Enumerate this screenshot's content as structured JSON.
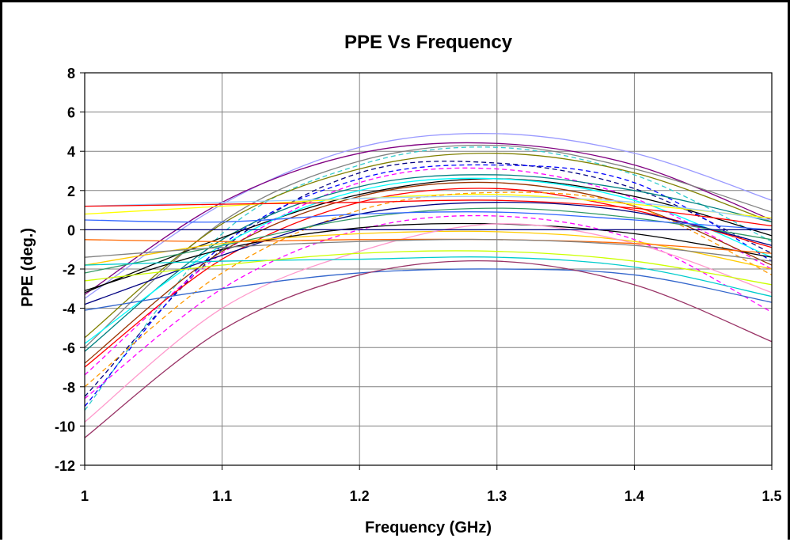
{
  "chart_data": {
    "type": "line",
    "title": "PPE Vs Frequency",
    "xlabel": "Frequency (GHz)",
    "ylabel": "PPE (deg.)",
    "xlim": [
      1,
      1.5
    ],
    "ylim": [
      -12,
      8
    ],
    "x_ticks": [
      "1",
      "1.1",
      "1.2",
      "1.3",
      "1.4",
      "1.5"
    ],
    "y_ticks": [
      "8",
      "6",
      "4",
      "2",
      "0",
      "-2",
      "-4",
      "-6",
      "-8",
      "-10",
      "-12"
    ],
    "grid": true,
    "legend": "none",
    "x": [
      1.0,
      1.1,
      1.2,
      1.3,
      1.4,
      1.5
    ],
    "series": [
      {
        "color": "#9999ff",
        "dash": false,
        "values": [
          -3.5,
          1.3,
          4.2,
          4.9,
          3.9,
          1.5
        ]
      },
      {
        "color": "#800080",
        "dash": false,
        "values": [
          -3.3,
          1.4,
          3.9,
          4.4,
          3.3,
          0.5
        ]
      },
      {
        "color": "#808080",
        "dash": false,
        "values": [
          -6.0,
          0.4,
          3.5,
          4.3,
          3.1,
          0.9
        ]
      },
      {
        "color": "#33cccc",
        "dash": true,
        "values": [
          -9.2,
          -0.2,
          3.3,
          4.2,
          2.8,
          -0.6
        ]
      },
      {
        "color": "#808000",
        "dash": false,
        "values": [
          -5.5,
          0.3,
          3.1,
          3.9,
          2.9,
          0.4
        ]
      },
      {
        "color": "#000080",
        "dash": true,
        "values": [
          -8.5,
          -1.0,
          2.9,
          3.4,
          2.1,
          -1.2
        ]
      },
      {
        "color": "#0000ff",
        "dash": true,
        "values": [
          -9.0,
          -0.8,
          2.6,
          3.3,
          2.4,
          -1.6
        ]
      },
      {
        "color": "#ff00ff",
        "dash": true,
        "values": [
          -7.4,
          -1.2,
          2.4,
          3.1,
          1.6,
          -2.0
        ]
      },
      {
        "color": "#008080",
        "dash": false,
        "values": [
          -6.2,
          -0.5,
          2.2,
          2.8,
          2.0,
          0.4
        ]
      },
      {
        "color": "#000000",
        "dash": false,
        "values": [
          -3.2,
          -0.4,
          1.8,
          2.6,
          1.7,
          -0.3
        ]
      },
      {
        "color": "#00ffff",
        "dash": false,
        "values": [
          -5.8,
          -0.8,
          2.0,
          2.6,
          1.5,
          -1.4
        ]
      },
      {
        "color": "#993300",
        "dash": false,
        "values": [
          -6.8,
          -1.1,
          1.7,
          2.4,
          1.2,
          -1.8
        ]
      },
      {
        "color": "#ff0000",
        "dash": false,
        "values": [
          -7.0,
          -1.5,
          1.4,
          2.1,
          1.0,
          -0.9
        ]
      },
      {
        "color": "#ffff00",
        "dash": false,
        "values": [
          0.8,
          1.2,
          1.6,
          1.8,
          1.3,
          0.6
        ]
      },
      {
        "color": "#ff9900",
        "dash": true,
        "values": [
          -8.0,
          -2.2,
          1.0,
          1.9,
          1.2,
          -2.3
        ]
      },
      {
        "color": "#99ccff",
        "dash": false,
        "values": [
          1.2,
          1.4,
          1.6,
          1.7,
          1.4,
          0.5
        ]
      },
      {
        "color": "#ff0000",
        "dash": false,
        "values": [
          1.2,
          1.3,
          1.4,
          1.5,
          1.1,
          0.2
        ]
      },
      {
        "color": "#000080",
        "dash": false,
        "values": [
          -3.8,
          -1.3,
          0.8,
          1.4,
          0.9,
          -0.8
        ]
      },
      {
        "color": "#339966",
        "dash": false,
        "values": [
          -2.2,
          -0.8,
          0.6,
          1.1,
          0.6,
          -0.5
        ]
      },
      {
        "color": "#3366ff",
        "dash": false,
        "values": [
          0.5,
          0.4,
          0.8,
          0.9,
          0.5,
          0.0
        ]
      },
      {
        "color": "#ff00ff",
        "dash": true,
        "values": [
          -8.6,
          -3.0,
          0.0,
          0.7,
          -0.5,
          -4.2
        ]
      },
      {
        "color": "#000000",
        "dash": false,
        "values": [
          -3.1,
          -1.0,
          0.1,
          0.3,
          -0.2,
          -1.4
        ]
      },
      {
        "color": "#ffcc00",
        "dash": false,
        "values": [
          -1.8,
          -0.7,
          -0.2,
          -0.1,
          -0.6,
          -2.0
        ]
      },
      {
        "color": "#ff99cc",
        "dash": false,
        "values": [
          -9.8,
          -4.0,
          -1.1,
          0.3,
          -0.7,
          -3.2
        ]
      },
      {
        "color": "#00cccc",
        "dash": false,
        "values": [
          -1.8,
          -1.6,
          -1.5,
          -1.4,
          -1.9,
          -3.4
        ]
      },
      {
        "color": "#ccff00",
        "dash": false,
        "values": [
          -2.6,
          -1.8,
          -1.2,
          -1.1,
          -1.6,
          -2.8
        ]
      },
      {
        "color": "#3366cc",
        "dash": false,
        "values": [
          -4.1,
          -3.0,
          -2.2,
          -2.0,
          -2.3,
          -3.7
        ]
      },
      {
        "color": "#993366",
        "dash": false,
        "values": [
          -10.6,
          -5.1,
          -2.3,
          -1.6,
          -2.8,
          -5.7
        ]
      },
      {
        "color": "#ff6600",
        "dash": false,
        "values": [
          -0.5,
          -0.6,
          -0.5,
          -0.5,
          -0.7,
          -1.2
        ]
      },
      {
        "color": "#808080",
        "dash": false,
        "values": [
          -1.4,
          -0.9,
          -0.6,
          -0.5,
          -0.8,
          -1.6
        ]
      }
    ]
  }
}
